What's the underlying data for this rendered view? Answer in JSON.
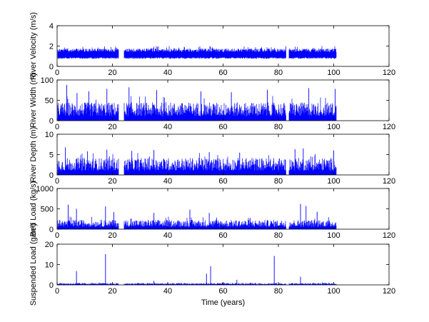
{
  "chart_data": {
    "type": "line",
    "series_color": "#0000ff",
    "xlabel": "Time (years)",
    "x_ticks": [
      0,
      20,
      40,
      60,
      80,
      100,
      120
    ],
    "xlim": [
      0,
      120
    ],
    "data_span": [
      0,
      101
    ],
    "gaps": [
      [
        22.3,
        24.2
      ],
      [
        82.8,
        83.8
      ]
    ],
    "panels": [
      {
        "id": "velocity",
        "ylabel": "River Velocity (m/s)",
        "ylim": [
          0,
          4
        ],
        "y_ticks": [
          0,
          2,
          4
        ],
        "base_low": 0.9,
        "base_high": 1.75,
        "spikes": []
      },
      {
        "id": "width",
        "ylabel": "River Width (m)",
        "ylim": [
          0,
          100
        ],
        "y_ticks": [
          0,
          50,
          100
        ],
        "base_low": 0,
        "base_high": 45,
        "spikes": [
          [
            3.5,
            88
          ],
          [
            7.2,
            68
          ],
          [
            11.5,
            72
          ],
          [
            18,
            78
          ],
          [
            26,
            82
          ],
          [
            36,
            75
          ],
          [
            52,
            72
          ],
          [
            63,
            70
          ],
          [
            76,
            76
          ],
          [
            91,
            80
          ],
          [
            100.5,
            78
          ]
        ]
      },
      {
        "id": "depth",
        "ylabel": "River Depth (m)",
        "ylim": [
          0,
          10
        ],
        "y_ticks": [
          0,
          5,
          10
        ],
        "base_low": 0,
        "base_high": 4.2,
        "spikes": [
          [
            3,
            6.8
          ],
          [
            11,
            5.8
          ],
          [
            18,
            6.2
          ],
          [
            27,
            5.9
          ],
          [
            35,
            6.1
          ],
          [
            55,
            5.6
          ],
          [
            66,
            5.5
          ],
          [
            86,
            6.3
          ],
          [
            89,
            6.5
          ],
          [
            100,
            6.0
          ]
        ]
      },
      {
        "id": "bedload",
        "ylabel": "Bed Load (kg/s)",
        "ylim": [
          0,
          1000
        ],
        "y_ticks": [
          0,
          500,
          1000
        ],
        "base_low": 0,
        "base_high": 230,
        "spikes": [
          [
            4,
            600
          ],
          [
            7,
            500
          ],
          [
            17.5,
            560
          ],
          [
            20.5,
            420
          ],
          [
            35,
            400
          ],
          [
            48,
            480
          ],
          [
            55,
            400
          ],
          [
            88,
            620
          ],
          [
            90,
            570
          ],
          [
            94,
            430
          ]
        ]
      },
      {
        "id": "suspended",
        "ylabel": "Suspended Load (g/m³)",
        "ylim": [
          0,
          20
        ],
        "y_ticks": [
          0,
          10,
          20
        ],
        "base_low": 0,
        "base_high": 0.9,
        "spikes": [
          [
            7,
            6.8
          ],
          [
            17.5,
            15.1
          ],
          [
            55.5,
            9.2
          ],
          [
            54,
            5.5
          ],
          [
            78.5,
            14.2
          ],
          [
            88,
            4.0
          ],
          [
            35,
            2.0
          ],
          [
            65,
            2.5
          ]
        ]
      }
    ]
  }
}
